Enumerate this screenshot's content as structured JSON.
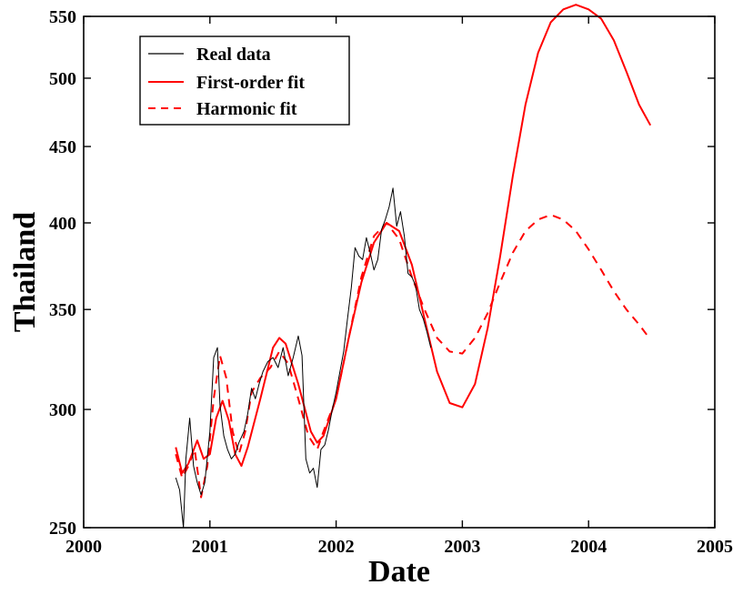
{
  "chart_data": {
    "type": "line",
    "title": "",
    "xlabel": "Date",
    "ylabel": "Thailand",
    "xlim": [
      2000,
      2005
    ],
    "ylim": [
      250,
      550
    ],
    "yscale": "log",
    "grid": false,
    "legend_position": "top-left",
    "xticks": [
      "2000",
      "2001",
      "2002",
      "2003",
      "2004",
      "2005"
    ],
    "yticks": [
      "250",
      "300",
      "350",
      "400",
      "450",
      "500",
      "550"
    ],
    "series": [
      {
        "name": "Real data",
        "style": "solid",
        "color": "#000000",
        "x": [
          2000.73,
          2000.76,
          2000.79,
          2000.81,
          2000.84,
          2000.87,
          2000.9,
          2000.93,
          2000.96,
          2001.0,
          2001.03,
          2001.06,
          2001.08,
          2001.11,
          2001.14,
          2001.17,
          2001.2,
          2001.23,
          2001.27,
          2001.3,
          2001.33,
          2001.36,
          2001.39,
          2001.42,
          2001.46,
          2001.5,
          2001.54,
          2001.58,
          2001.62,
          2001.66,
          2001.7,
          2001.73,
          2001.76,
          2001.79,
          2001.82,
          2001.85,
          2001.88,
          2001.91,
          2001.94,
          2001.97,
          2002.0,
          2002.03,
          2002.06,
          2002.09,
          2002.12,
          2002.15,
          2002.18,
          2002.21,
          2002.24,
          2002.27,
          2002.3,
          2002.33,
          2002.36,
          2002.39,
          2002.42,
          2002.45,
          2002.48,
          2002.51,
          2002.54,
          2002.57,
          2002.6,
          2002.63,
          2002.66,
          2002.69,
          2002.72,
          2002.75
        ],
        "y": [
          270,
          265,
          250,
          278,
          296,
          275,
          268,
          263,
          268,
          290,
          325,
          330,
          302,
          288,
          282,
          278,
          280,
          285,
          290,
          298,
          310,
          305,
          312,
          318,
          323,
          325,
          320,
          330,
          316,
          325,
          336,
          326,
          278,
          272,
          274,
          266,
          282,
          284,
          291,
          300,
          308,
          318,
          328,
          345,
          362,
          385,
          380,
          378,
          391,
          382,
          372,
          378,
          396,
          402,
          410,
          422,
          398,
          407,
          392,
          370,
          368,
          363,
          350,
          345,
          338,
          330
        ]
      },
      {
        "name": "First-order fit",
        "style": "solid",
        "color": "#ff0000",
        "x": [
          2000.73,
          2000.78,
          2000.83,
          2000.9,
          2000.95,
          2001.0,
          2001.05,
          2001.1,
          2001.15,
          2001.2,
          2001.25,
          2001.3,
          2001.4,
          2001.5,
          2001.55,
          2001.6,
          2001.7,
          2001.8,
          2001.85,
          2001.9,
          2002.0,
          2002.1,
          2002.2,
          2002.3,
          2002.4,
          2002.5,
          2002.6,
          2002.7,
          2002.8,
          2002.9,
          2003.0,
          2003.1,
          2003.2,
          2003.3,
          2003.4,
          2003.5,
          2003.6,
          2003.7,
          2003.8,
          2003.9,
          2004.0,
          2004.1,
          2004.2,
          2004.3,
          2004.4,
          2004.49
        ],
        "y": [
          283,
          272,
          276,
          286,
          278,
          280,
          296,
          304,
          295,
          280,
          275,
          283,
          305,
          330,
          335,
          332,
          312,
          290,
          285,
          288,
          305,
          335,
          365,
          388,
          400,
          395,
          375,
          345,
          318,
          303,
          301,
          312,
          340,
          380,
          430,
          480,
          520,
          545,
          556,
          560,
          556,
          548,
          530,
          505,
          480,
          465
        ]
      },
      {
        "name": "Harmonic fit",
        "style": "dashed",
        "color": "#ff0000",
        "x": [
          2000.73,
          2000.78,
          2000.83,
          2000.88,
          2000.93,
          2000.98,
          2001.03,
          2001.08,
          2001.13,
          2001.18,
          2001.23,
          2001.28,
          2001.33,
          2001.4,
          2001.48,
          2001.55,
          2001.62,
          2001.7,
          2001.78,
          2001.85,
          2001.9,
          2002.0,
          2002.1,
          2002.2,
          2002.3,
          2002.4,
          2002.5,
          2002.6,
          2002.7,
          2002.8,
          2002.9,
          2003.0,
          2003.1,
          2003.2,
          2003.3,
          2003.4,
          2003.5,
          2003.6,
          2003.7,
          2003.8,
          2003.9,
          2004.0,
          2004.1,
          2004.2,
          2004.3,
          2004.4,
          2004.48
        ],
        "y": [
          280,
          270,
          275,
          282,
          262,
          275,
          305,
          326,
          315,
          290,
          280,
          290,
          308,
          315,
          320,
          328,
          322,
          305,
          288,
          282,
          290,
          305,
          335,
          368,
          392,
          400,
          390,
          368,
          350,
          335,
          328,
          327,
          335,
          348,
          365,
          382,
          395,
          402,
          405,
          402,
          395,
          384,
          372,
          360,
          350,
          342,
          335
        ]
      }
    ]
  }
}
